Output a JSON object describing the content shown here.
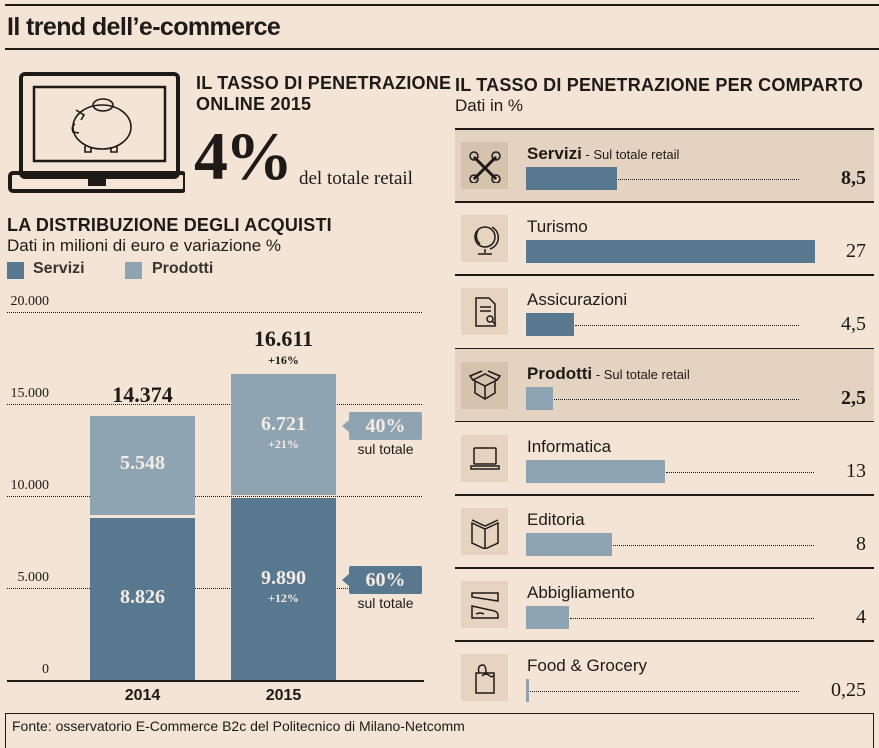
{
  "header": {
    "title": "Il trend dell’e-commerce"
  },
  "penetration": {
    "heading_line1": "IL TASSO DI PENETRAZIONE",
    "heading_line2": "ONLINE 2015",
    "value": "4%",
    "value_label": "del totale retail",
    "icon": "laptop-piggy-bank-icon"
  },
  "colors": {
    "servizi": "#58788f",
    "prodotti": "#8fa4b2",
    "background": "#f4e4d6",
    "highlight_row": "#e4d3c1"
  },
  "chart_data": [
    {
      "type": "bar",
      "stacked": true,
      "title": "LA DISTRIBUZIONE DEGLI ACQUISTI",
      "subtitle": "Dati in milioni di euro e variazione %",
      "xlabel": "",
      "ylabel": "",
      "categories": [
        "2014",
        "2015"
      ],
      "series": [
        {
          "name": "Servizi",
          "values": [
            8826,
            9890
          ],
          "value_labels": [
            "8.826",
            "9.890"
          ],
          "variation_labels": [
            "",
            "+12%"
          ],
          "share_label": "60%",
          "share_sub": "sul totale"
        },
        {
          "name": "Prodotti",
          "values": [
            5548,
            6721
          ],
          "value_labels": [
            "5.548",
            "6.721"
          ],
          "variation_labels": [
            "",
            "+21%"
          ],
          "share_label": "40%",
          "share_sub": "sul totale"
        }
      ],
      "totals": [
        14374,
        16611
      ],
      "total_labels": [
        "14.374",
        "16.611"
      ],
      "total_variation_labels": [
        "",
        "+16%"
      ],
      "ylim": [
        0,
        20000
      ],
      "yticks": [
        0,
        5000,
        10000,
        15000,
        20000
      ],
      "ytick_labels": [
        "0",
        "5.000",
        "10.000",
        "15.000",
        "20.000"
      ],
      "grid": true,
      "legend": [
        "Servizi",
        "Prodotti"
      ],
      "legend_position": "top-left"
    },
    {
      "type": "bar",
      "orientation": "horizontal",
      "title": "IL TASSO DI PENETRAZIONE PER COMPARTO",
      "subtitle": "Dati in %",
      "xlim": [
        0,
        30
      ],
      "categories": [
        "Servizi",
        "Turismo",
        "Assicurazioni",
        "Prodotti",
        "Informatica",
        "Editoria",
        "Abbigliamento",
        "Food & Grocery"
      ],
      "values": [
        8.5,
        27,
        4.5,
        2.5,
        13,
        8,
        4,
        0.25
      ],
      "value_labels": [
        "8,5",
        "27",
        "4,5",
        "2,5",
        "13",
        "8",
        "4",
        "0,25"
      ],
      "grid": false
    }
  ],
  "sectors": {
    "heading": "IL TASSO DI PENETRAZIONE PER COMPARTO",
    "subheading": "Dati in %",
    "rows": [
      {
        "label": "Servizi",
        "sublabel": " - Sul totale retail",
        "value": 8.5,
        "value_label": "8,5",
        "group": "servizi",
        "highlight": true,
        "icon": "wrenches-icon"
      },
      {
        "label": "Turismo",
        "sublabel": "",
        "value": 27,
        "value_label": "27",
        "group": "servizi",
        "highlight": false,
        "icon": "globe-icon"
      },
      {
        "label": "Assicurazioni",
        "sublabel": "",
        "value": 4.5,
        "value_label": "4,5",
        "group": "servizi",
        "highlight": false,
        "icon": "certificate-icon"
      },
      {
        "label": "Prodotti",
        "sublabel": " - Sul totale retail",
        "value": 2.5,
        "value_label": "2,5",
        "group": "prodotti",
        "highlight": true,
        "icon": "box-icon"
      },
      {
        "label": "Informatica",
        "sublabel": "",
        "value": 13,
        "value_label": "13",
        "group": "prodotti",
        "highlight": false,
        "icon": "laptop-icon"
      },
      {
        "label": "Editoria",
        "sublabel": "",
        "value": 8,
        "value_label": "8",
        "group": "prodotti",
        "highlight": false,
        "icon": "book-icon"
      },
      {
        "label": "Abbigliamento",
        "sublabel": "",
        "value": 4,
        "value_label": "4",
        "group": "prodotti",
        "highlight": false,
        "icon": "shoes-icon"
      },
      {
        "label": "Food & Grocery",
        "sublabel": "",
        "value": 0.25,
        "value_label": "0,25",
        "group": "prodotti",
        "highlight": false,
        "icon": "grocery-bag-icon"
      }
    ]
  },
  "footer": {
    "source": "Fonte: osservatorio E-Commerce B2c del Politecnico di Milano-Netcomm"
  }
}
